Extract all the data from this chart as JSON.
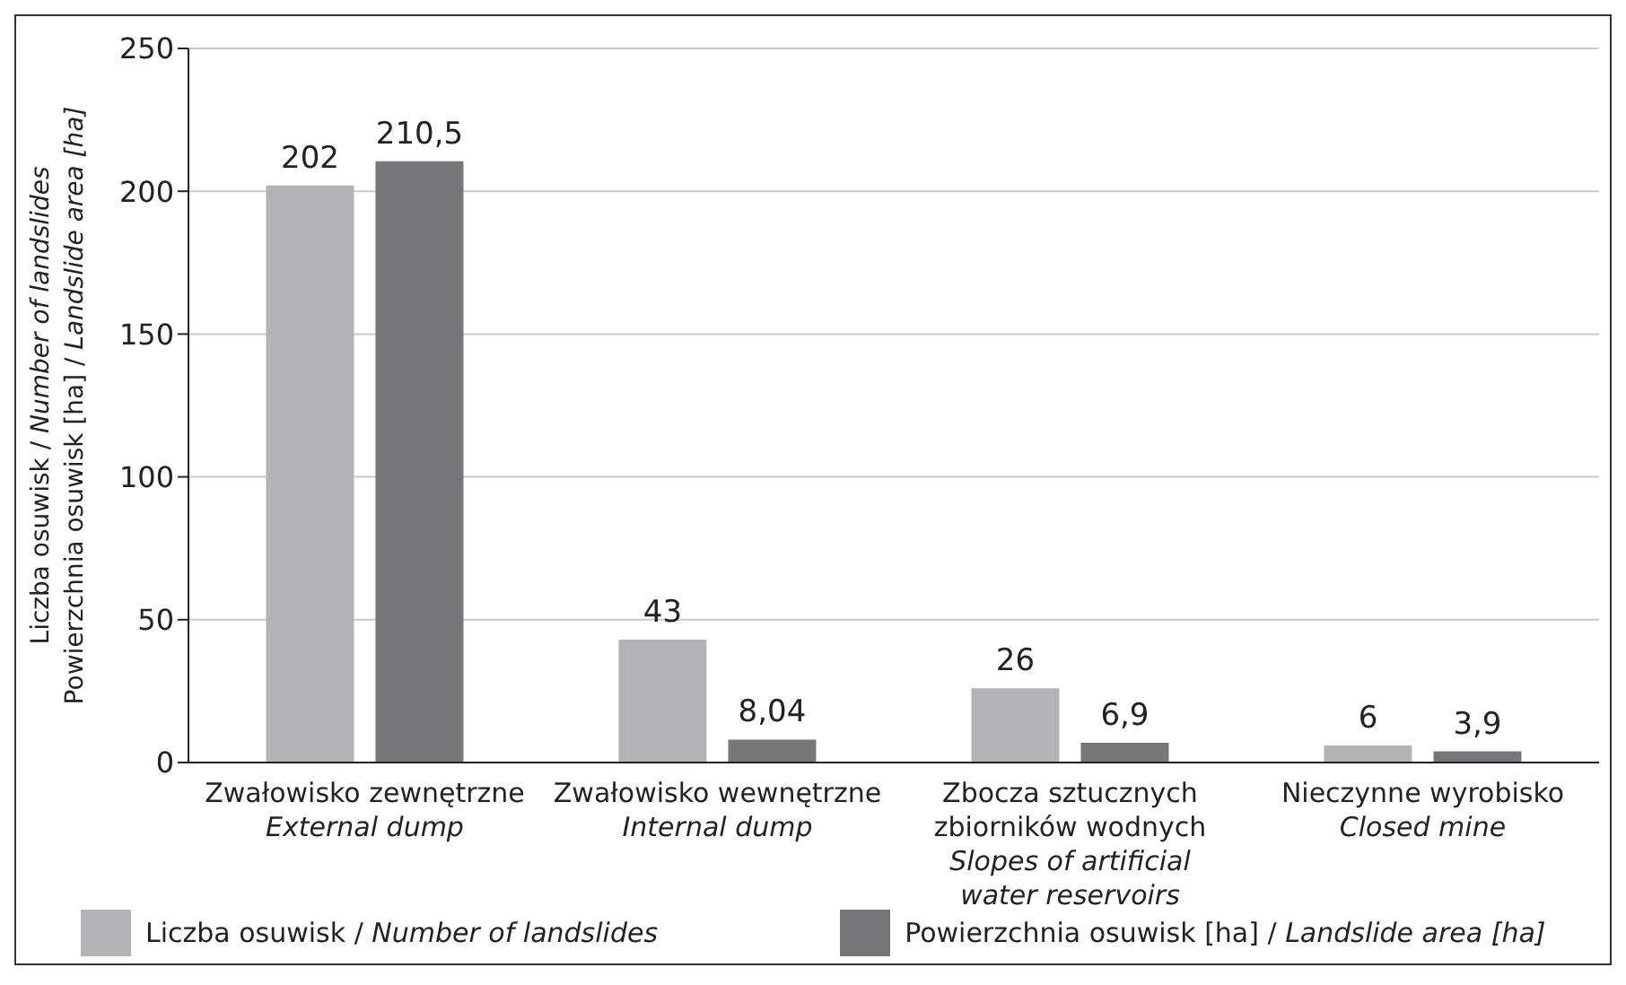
{
  "chart_data": {
    "type": "bar",
    "ylabel": "Liczba osuwisk / Number of landslides\nPowierzchnia osuwisk [ha] / Landslide area [ha]",
    "categories": [
      "Zwałowisko zewnętrzne\nExternal dump",
      "Zwałowisko wewnętrzne\nInternal dump",
      "Zbocza sztucznych\nzbiorników wodnych\nSlopes of artificial\nwater reservoirs",
      "Nieczynne wyrobisko\nClosed mine"
    ],
    "series": [
      {
        "name": "Liczba osuwisk / Number of landslides",
        "color": "#b2b3b6",
        "values": [
          202,
          43,
          26,
          6
        ],
        "value_labels": [
          "202",
          "43",
          "26",
          "6"
        ]
      },
      {
        "name": "Powierzchnia osuwisk [ha] / Landslide area [ha]",
        "color": "#76777b",
        "values": [
          210.5,
          8.04,
          6.9,
          3.9
        ],
        "value_labels": [
          "210,5",
          "8,04",
          "6,9",
          "3,9"
        ]
      }
    ],
    "ylim": [
      0,
      250
    ],
    "yticks": [
      0,
      50,
      100,
      150,
      200,
      250
    ],
    "grid": "y",
    "legend": "bottom"
  }
}
